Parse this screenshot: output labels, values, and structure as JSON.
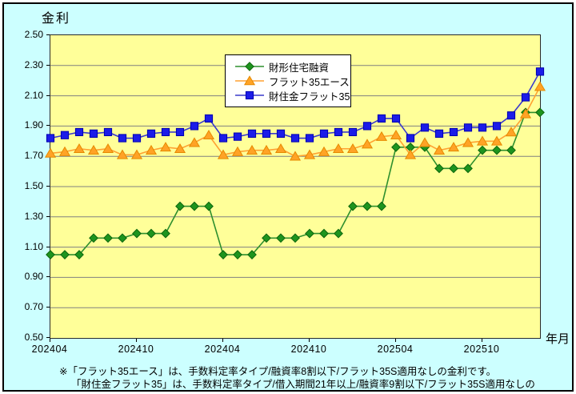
{
  "chart_data": {
    "type": "line",
    "title": "金利",
    "ylabel": "金利",
    "xlabel": "年月",
    "ylim": [
      0.5,
      2.5
    ],
    "ytick_step": 0.2,
    "grid": true,
    "plot_bg": "#FFFF99",
    "outer_bg": "#CCFFFF",
    "grid_color": "#808080",
    "y_tick_labels": [
      "2.50",
      "2.30",
      "2.10",
      "1.90",
      "1.70",
      "1.50",
      "1.30",
      "1.10",
      "0.90",
      "0.70",
      "0.50"
    ],
    "n_points": 35,
    "x_tick_indices": [
      0,
      6,
      12,
      18,
      24,
      30
    ],
    "x_tick_labels": [
      "202404",
      "202410",
      "202404",
      "202410",
      "202504",
      "202510"
    ],
    "legend_position": "inside-top-center",
    "series": [
      {
        "name": "財形住宅融資",
        "marker": "diamond",
        "line_color": "#2E8F2E",
        "fill_color": "#1E941E",
        "edge_color": "#0C660C",
        "values": [
          1.05,
          1.05,
          1.05,
          1.16,
          1.16,
          1.16,
          1.19,
          1.19,
          1.19,
          1.37,
          1.37,
          1.37,
          1.05,
          1.05,
          1.05,
          1.16,
          1.16,
          1.16,
          1.19,
          1.19,
          1.19,
          1.37,
          1.37,
          1.37,
          1.76,
          1.76,
          1.76,
          1.62,
          1.62,
          1.62,
          1.74,
          1.74,
          1.74,
          1.99,
          1.99
        ]
      },
      {
        "name": "フラット35エース",
        "marker": "triangle",
        "line_color": "#FFA132",
        "fill_color": "#FFA326",
        "edge_color": "#E68A00",
        "values": [
          1.72,
          1.73,
          1.75,
          1.74,
          1.75,
          1.71,
          1.71,
          1.74,
          1.76,
          1.75,
          1.79,
          1.84,
          1.71,
          1.73,
          1.74,
          1.74,
          1.75,
          1.7,
          1.71,
          1.73,
          1.75,
          1.75,
          1.78,
          1.83,
          1.84,
          1.71,
          1.79,
          1.74,
          1.76,
          1.79,
          1.8,
          1.8,
          1.86,
          1.98,
          2.16
        ]
      },
      {
        "name": "財住金フラット35",
        "marker": "square",
        "line_color": "#3A3ACC",
        "fill_color": "#1C1CE8",
        "edge_color": "#0000B0",
        "values": [
          1.82,
          1.84,
          1.86,
          1.85,
          1.86,
          1.82,
          1.82,
          1.85,
          1.86,
          1.86,
          1.9,
          1.95,
          1.82,
          1.83,
          1.85,
          1.85,
          1.85,
          1.82,
          1.82,
          1.85,
          1.86,
          1.86,
          1.9,
          1.95,
          1.95,
          1.82,
          1.89,
          1.85,
          1.86,
          1.89,
          1.89,
          1.9,
          1.97,
          2.09,
          2.26
        ]
      }
    ]
  },
  "footnotes": {
    "line1": "※「フラット35エース」は、手数料定率タイプ/融資率8割以下/フラット35S適用なしの金利です。",
    "line2": "「財住金フラット35」は、手数料定率タイプ/借入期間21年以上/融資率9割以下/フラット35S適用なしの"
  }
}
